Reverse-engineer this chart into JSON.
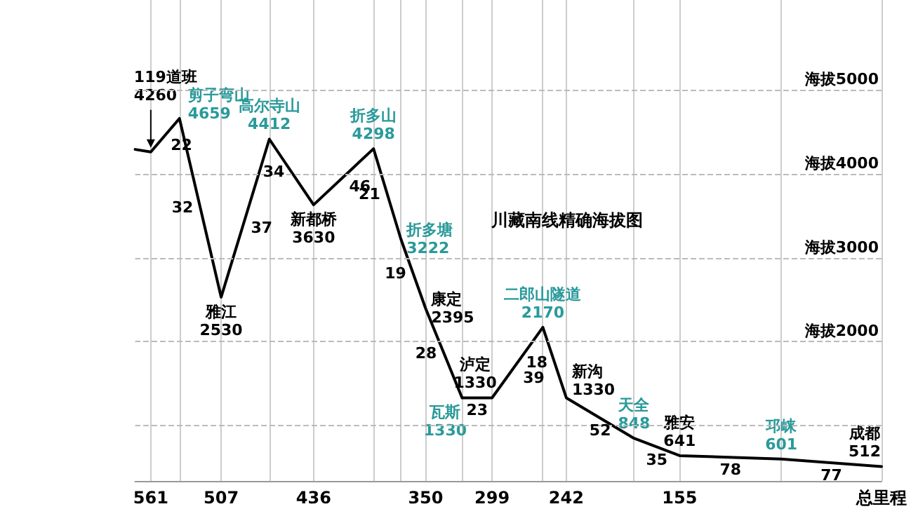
{
  "chart_data": {
    "type": "line",
    "title": "川藏南线精确海拔图",
    "x": [
      573,
      561,
      539,
      507,
      470,
      436,
      390,
      369,
      350,
      322,
      299,
      260,
      242,
      190,
      155,
      77,
      0
    ],
    "series": [
      {
        "color": "#000000",
        "values": [
          4290,
          4260,
          4659,
          2530,
          4412,
          3630,
          4298,
          3222,
          2395,
          1330,
          1330,
          2170,
          1330,
          848,
          641,
          601,
          512
        ],
        "value_labels": [
          null,
          "119道班\n4260",
          "剪子弯山\n4659",
          "雅江\n2530",
          "高尔寺山\n4412",
          "新都桥\n3630",
          "折多山\n4298",
          "折多塘\n3222",
          "康定\n2395",
          "瓦斯\n1330",
          "泸定\n1330",
          "二郎山隧道\n2170",
          "新沟\n1330",
          "天全\n848",
          "雅安\n641",
          "邛崃\n601",
          "成都\n512"
        ],
        "colors": [
          "#000000",
          "#000000",
          "#2a9a9a",
          "#000000",
          "#2a9a9a",
          "#000000",
          "#2a9a9a",
          "#2a9a9a",
          "#000000",
          "#2a9a9a",
          "#000000",
          "#2a9a9a",
          "#000000",
          "#2a9a9a",
          "#000000",
          "#2a9a9a",
          "#000000"
        ]
      }
    ],
    "xlim": [
      573,
      0
    ],
    "xticks": [
      561,
      {
        "value": 539,
        "label": null
      },
      507,
      {
        "value": 470,
        "label": null
      },
      436,
      {
        "value": 390,
        "label": null
      },
      {
        "value": 369,
        "label": null
      },
      350,
      {
        "value": 322,
        "label": null
      },
      299,
      {
        "value": 260,
        "label": null
      },
      242,
      {
        "value": 190,
        "label": null
      },
      155,
      {
        "value": 77,
        "label": null
      },
      {
        "value": 0,
        "label": "总里程"
      }
    ],
    "ylim": [
      340,
      6070
    ],
    "tick_labels": "x",
    "ref_lines": [
      {
        "axis": "y",
        "value": 1000,
        "label": null,
        "line_style": "dashed"
      },
      {
        "axis": "y",
        "value": 2000,
        "label": "海拔2000",
        "line_style": "dashed"
      },
      {
        "axis": "y",
        "value": 3000,
        "label": "海拔3000",
        "line_style": "dashed"
      },
      {
        "axis": "y",
        "value": 4000,
        "label": "海拔4000",
        "line_style": "dashed"
      },
      {
        "axis": "y",
        "value": 5000,
        "label": "海拔5000",
        "line_style": "dashed"
      }
    ],
    "grid": "x",
    "marker": "none",
    "line_style": "solid",
    "annotations": [
      "22",
      "32",
      "37",
      "34",
      "46",
      "21",
      "19",
      "28",
      "23",
      "39",
      "18",
      "52",
      "35",
      "78",
      "77"
    ]
  }
}
